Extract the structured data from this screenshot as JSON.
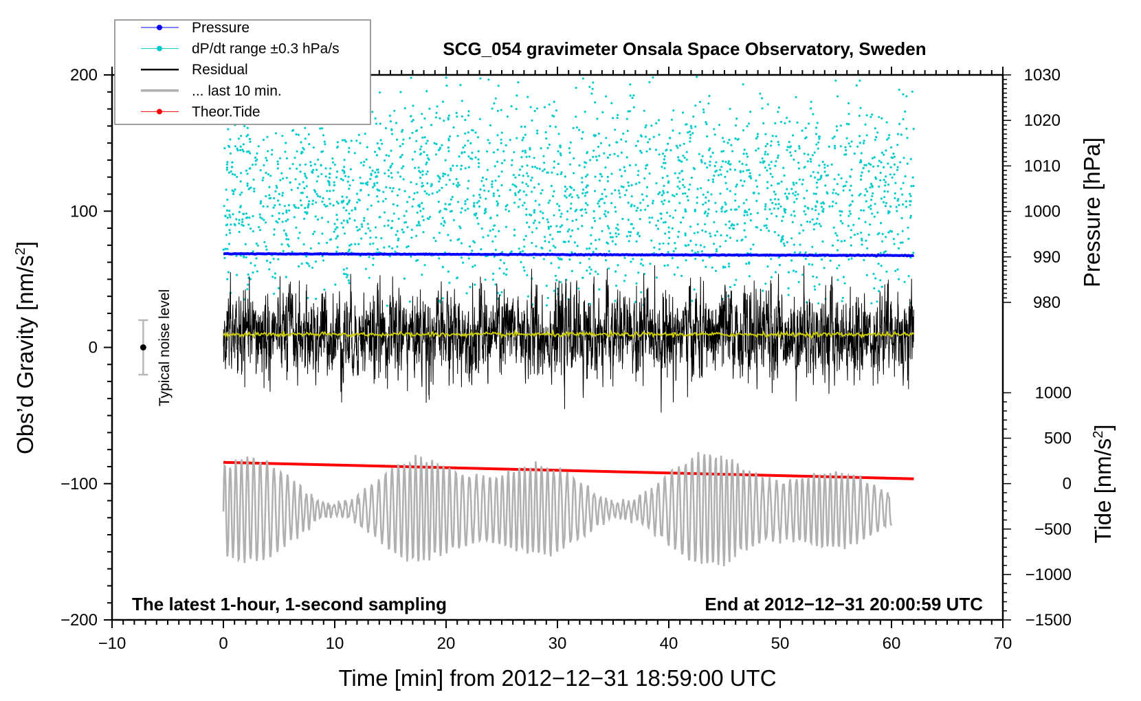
{
  "chart_data": {
    "type": "line",
    "title": "SCG_054 gravimeter Onsala Space Observatory, Sweden",
    "xlabel": "Time [min] from 2012−12−31 18:59:00 UTC",
    "ylabel_left": "Obs’d Gravity [nm/s",
    "ylabel_left_sup": "2",
    "ylabel_left_end": "]",
    "ylabel_right_pressure": "Pressure [hPa]",
    "ylabel_right_tide": "Tide [nm/s",
    "ylabel_right_tide_sup": "2",
    "ylabel_right_tide_end": "]",
    "xlim": [
      -10,
      70
    ],
    "ylim_left": [
      -200,
      200
    ],
    "ylim_pressure": [
      980,
      1030
    ],
    "ylim_tide": [
      -1500,
      1000
    ],
    "x_ticks": [
      "−10",
      "0",
      "10",
      "20",
      "30",
      "40",
      "50",
      "60",
      "70"
    ],
    "x_tick_values": [
      -10,
      0,
      10,
      20,
      30,
      40,
      50,
      60,
      70
    ],
    "y_left_ticks": [
      "200",
      "100",
      "0",
      "−100",
      "−200"
    ],
    "y_left_tick_values": [
      200,
      100,
      0,
      -100,
      -200
    ],
    "pressure_ticks": [
      "1030",
      "1020",
      "1010",
      "1000",
      "990",
      "980"
    ],
    "pressure_tick_values": [
      1030,
      1020,
      1010,
      1000,
      990,
      980
    ],
    "tide_ticks": [
      "1000",
      "500",
      "0",
      "−500",
      "−1000",
      "−1500"
    ],
    "tide_tick_values": [
      1000,
      500,
      0,
      -500,
      -1000,
      -1500
    ],
    "legend": {
      "placement": "top-left",
      "items": [
        {
          "label": "Pressure",
          "color": "#0000ff",
          "style": "line-dot"
        },
        {
          "label": "dP/dt range ±0.3 hPa/s",
          "color": "#00cccc",
          "style": "line-dot"
        },
        {
          "label": "Residual",
          "color": "#000000",
          "style": "line"
        },
        {
          "label": "... last 10 min.",
          "color": "#b0b0b0",
          "style": "line"
        },
        {
          "label": "Theor.Tide",
          "color": "#ff0000",
          "style": "line-dot"
        }
      ]
    },
    "series": [
      {
        "name": "Pressure",
        "axis": "pressure",
        "x_range": [
          0,
          62
        ],
        "start": 990.7,
        "end": 990.3,
        "color": "#0000ff"
      },
      {
        "name": "dP/dt range",
        "axis": "left",
        "x_range": [
          0,
          62
        ],
        "count": 2400,
        "mean": 112,
        "spread": 38,
        "min": 30,
        "max": 200,
        "color": "#00cccc"
      },
      {
        "name": "Residual",
        "axis": "left",
        "x_range": [
          0,
          62
        ],
        "samples_per_min": 60,
        "mean": 9.5,
        "std": 13,
        "min": -50,
        "max": 66,
        "color": "#000000"
      },
      {
        "name": "Residual smoothed",
        "axis": "left",
        "x_range": [
          0,
          62
        ],
        "mean": 9.5,
        "color": "#cccc00"
      },
      {
        "name": "Theor.Tide",
        "axis": "tide",
        "x_range": [
          0,
          62
        ],
        "start": 234,
        "end": 53,
        "color": "#ff0000"
      },
      {
        "name": "... last 10 min.",
        "axis": "left",
        "x_range": [
          0,
          60
        ],
        "center": -119,
        "amplitude": 45,
        "period_min": 0.55,
        "color": "#b0b0b0"
      }
    ],
    "noise_bar": {
      "label": "Typical noise level",
      "x": -7.2,
      "y": 0,
      "half_range": 20
    },
    "annotation_left": "The latest 1-hour, 1-second sampling",
    "annotation_right": "End at 2012−12−31 20:00:59 UTC",
    "grid": false
  }
}
